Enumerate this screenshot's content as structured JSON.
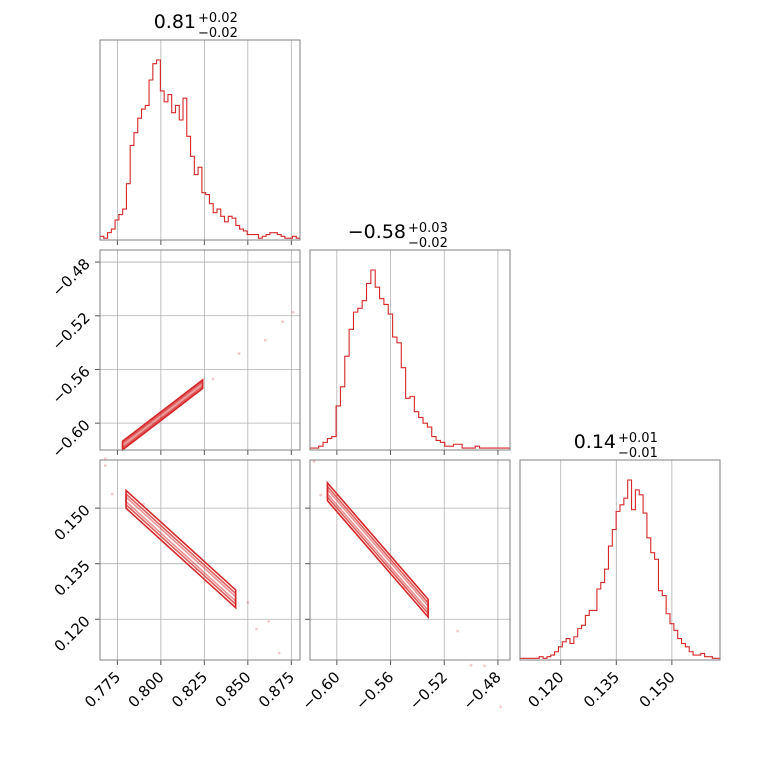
{
  "figure": {
    "background": "#ffffff",
    "frame_color": "#808080",
    "grid_color": "#b0b0b0"
  },
  "chart_data": {
    "type": "corner",
    "color": "#d62728",
    "grid": true,
    "parameters": [
      {
        "title": {
          "value": "0.81",
          "plus": "+0.02",
          "minus": "−0.02"
        },
        "range": [
          0.765,
          0.88
        ],
        "ticks": [
          0.775,
          0.8,
          0.825,
          0.85,
          0.875
        ],
        "tick_labels": [
          "0.775",
          "0.800",
          "0.825",
          "0.850",
          "0.875"
        ],
        "hist": [
          2,
          1,
          4,
          6,
          11,
          14,
          17,
          31,
          52,
          59,
          67,
          72,
          74,
          88,
          97,
          99,
          82,
          76,
          80,
          70,
          74,
          66,
          78,
          57,
          46,
          36,
          40,
          26,
          25,
          20,
          15,
          17,
          13,
          10,
          13,
          12,
          8,
          6,
          5,
          3,
          3,
          3,
          1,
          2,
          3,
          4,
          4,
          3,
          2,
          1,
          1,
          2,
          1
        ]
      },
      {
        "title": {
          "value": "−0.58",
          "plus": "+0.03",
          "minus": "−0.02"
        },
        "range": [
          -0.62,
          -0.471
        ],
        "ticks": [
          -0.6,
          -0.56,
          -0.52,
          -0.48
        ],
        "tick_labels": [
          "−0.60",
          "−0.56",
          "−0.52",
          "−0.48"
        ],
        "hist": [
          1,
          1,
          2,
          4,
          6,
          7,
          23,
          33,
          49,
          63,
          72,
          74,
          78,
          87,
          94,
          85,
          79,
          76,
          71,
          59,
          56,
          43,
          27,
          28,
          20,
          17,
          14,
          12,
          7,
          5,
          4,
          2,
          2,
          3,
          3,
          1,
          1,
          1,
          2,
          1,
          1,
          1,
          1,
          1,
          1,
          1
        ]
      },
      {
        "title": {
          "value": "0.14",
          "plus": "+0.01",
          "minus": "−0.01"
        },
        "range": [
          0.109,
          0.163
        ],
        "ticks": [
          0.12,
          0.135,
          0.15
        ],
        "tick_labels": [
          "0.120",
          "0.135",
          "0.150"
        ],
        "hist": [
          1,
          1,
          1,
          1,
          1,
          2,
          1,
          2,
          3,
          5,
          8,
          11,
          13,
          10,
          14,
          19,
          21,
          27,
          30,
          30,
          43,
          47,
          55,
          69,
          79,
          90,
          94,
          98,
          109,
          91,
          103,
          100,
          89,
          74,
          65,
          61,
          42,
          39,
          28,
          22,
          18,
          13,
          10,
          8,
          5,
          3,
          3,
          4,
          2,
          2,
          1,
          1
        ]
      }
    ],
    "pairs": [
      {
        "x_param": 0,
        "y_param": 1,
        "slope": 0.992,
        "intercept": -1.3884,
        "halfwidth": 0.0032,
        "contour_x": [
          0.778,
          0.785,
          0.795,
          0.805,
          0.815,
          0.824
        ],
        "scatter_x": [
          0.768,
          0.79,
          0.8,
          0.812,
          0.83,
          0.845,
          0.86,
          0.87,
          0.876
        ],
        "scatter_offset": [
          0.0,
          0.002,
          -0.002,
          0.003,
          -0.002,
          0.002,
          -0.003,
          0.001,
          0.002
        ]
      },
      {
        "x_param": 0,
        "y_param": 2,
        "slope": -0.4262,
        "intercept": 0.4848,
        "halfwidth": 0.0024,
        "contour_x": [
          0.78,
          0.79,
          0.805,
          0.815,
          0.83,
          0.843
        ],
        "scatter_x": [
          0.768,
          0.772,
          0.79,
          0.82,
          0.85,
          0.855,
          0.862,
          0.868
        ],
        "scatter_offset": [
          0.004,
          -0.002,
          0.003,
          -0.002,
          0.002,
          -0.003,
          0.002,
          -0.004
        ]
      },
      {
        "x_param": 1,
        "y_param": 2,
        "slope": -0.4188,
        "intercept": -0.0998,
        "halfwidth": 0.0024,
        "contour_x": [
          -0.607,
          -0.595,
          -0.58,
          -0.565,
          -0.55,
          -0.532
        ],
        "scatter_x": [
          -0.617,
          -0.612,
          -0.6,
          -0.55,
          -0.51,
          -0.5,
          -0.49,
          -0.478
        ],
        "scatter_offset": [
          0.004,
          -0.003,
          0.002,
          -0.002,
          0.003,
          -0.002,
          0.002,
          -0.004
        ]
      }
    ]
  }
}
